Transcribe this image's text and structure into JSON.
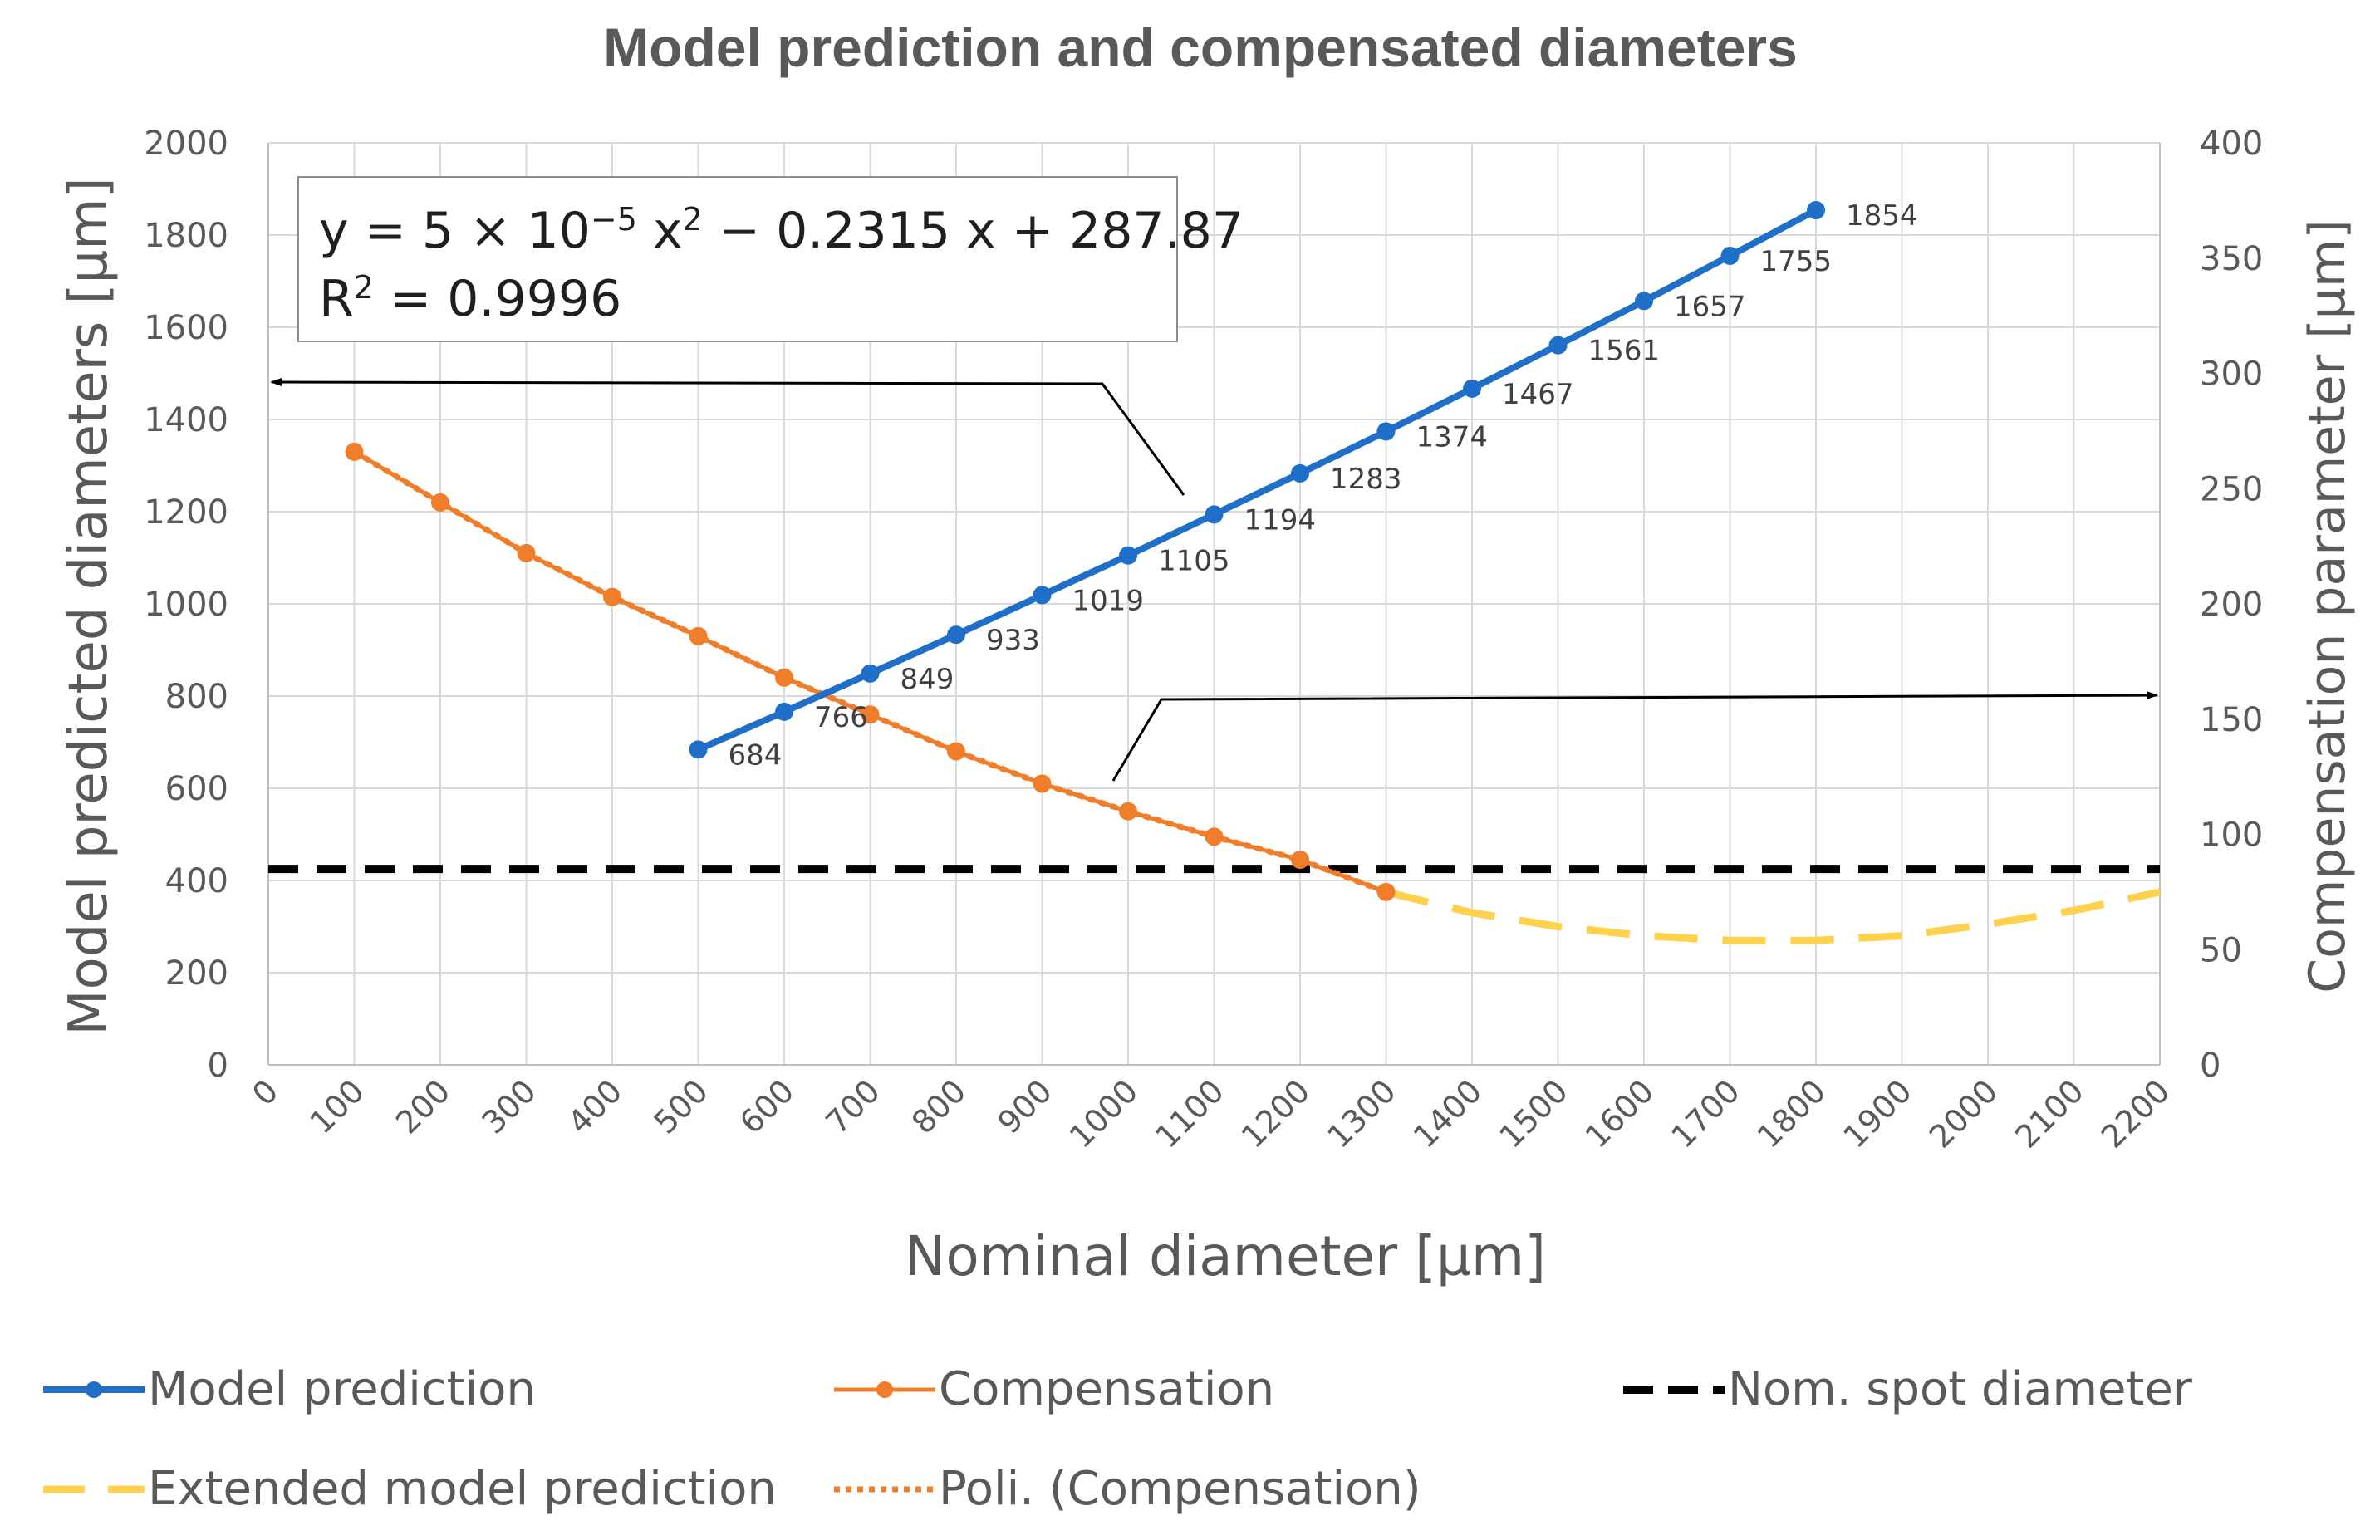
{
  "chart_data": {
    "type": "line",
    "title": "Model prediction and compensated diameters",
    "xlabel": "Nominal diameter [µm]",
    "ylabel_left": "Model predicted diameters [µm]",
    "ylabel_right": "Compensation parameter [µm]",
    "xlim": [
      0,
      2200
    ],
    "ylim_left": [
      0,
      2000
    ],
    "ylim_right": [
      0,
      400
    ],
    "x_ticks": [
      0,
      100,
      200,
      300,
      400,
      500,
      600,
      700,
      800,
      900,
      1000,
      1100,
      1200,
      1300,
      1400,
      1500,
      1600,
      1700,
      1800,
      1900,
      2000,
      2100,
      2200
    ],
    "y_left_ticks": [
      0,
      200,
      400,
      600,
      800,
      1000,
      1200,
      1400,
      1600,
      1800,
      2000
    ],
    "y_right_ticks": [
      0,
      50,
      100,
      150,
      200,
      250,
      300,
      350,
      400
    ],
    "grid": true,
    "legend_position": "bottom",
    "series": [
      {
        "name": "Model prediction",
        "axis": "left",
        "color": "#1f6fc8",
        "style": "solid-markers",
        "x": [
          500,
          600,
          700,
          800,
          900,
          1000,
          1100,
          1200,
          1300,
          1400,
          1500,
          1600,
          1700,
          1800
        ],
        "values": [
          684,
          766,
          849,
          933,
          1019,
          1105,
          1194,
          1283,
          1374,
          1467,
          1561,
          1657,
          1755,
          1854
        ],
        "labels": [
          "684",
          "766",
          "849",
          "933",
          "1019",
          "1105",
          "1194",
          "1283",
          "1374",
          "1467",
          "1561",
          "1657",
          "1755",
          "1854"
        ]
      },
      {
        "name": "Compensation",
        "axis": "right",
        "color": "#f07d2a",
        "style": "solid-markers",
        "x": [
          100,
          200,
          300,
          400,
          500,
          600,
          700,
          800,
          900,
          1000,
          1100,
          1200,
          1300
        ],
        "values": [
          266,
          244,
          222,
          203,
          186,
          168,
          152,
          136,
          122,
          110,
          99,
          89,
          75
        ]
      },
      {
        "name": "Nom. spot diameter",
        "axis": "left",
        "color": "#000000",
        "style": "dashed",
        "x": [
          0,
          2200
        ],
        "values": [
          425,
          425
        ]
      },
      {
        "name": "Extended model prediction",
        "axis": "right",
        "color": "#ffd24d",
        "style": "long-dash",
        "x": [
          1300,
          1400,
          1500,
          1600,
          1700,
          1800,
          1900,
          2000,
          2100,
          2200
        ],
        "values": [
          75,
          66,
          60,
          56,
          54,
          54,
          56,
          61,
          67,
          75
        ]
      },
      {
        "name": "Poli. (Compensation)",
        "axis": "right",
        "color": "#f07d2a",
        "style": "dotted",
        "x": [
          100,
          200,
          300,
          400,
          500,
          600,
          700,
          800,
          900,
          1000,
          1100,
          1200,
          1300
        ],
        "values": [
          266,
          244,
          222,
          203,
          186,
          168,
          152,
          136,
          122,
          110,
          99,
          89,
          75
        ]
      }
    ],
    "annotations": {
      "equation": "y = 5 × 10",
      "equation_exp1": "−5",
      "equation_mid": " x",
      "equation_exp2": "2",
      "equation_tail": " − 0.2315 x + 287.87",
      "r2_prefix": "R",
      "r2_exp": "2",
      "r2_tail": " = 0.9996"
    }
  }
}
